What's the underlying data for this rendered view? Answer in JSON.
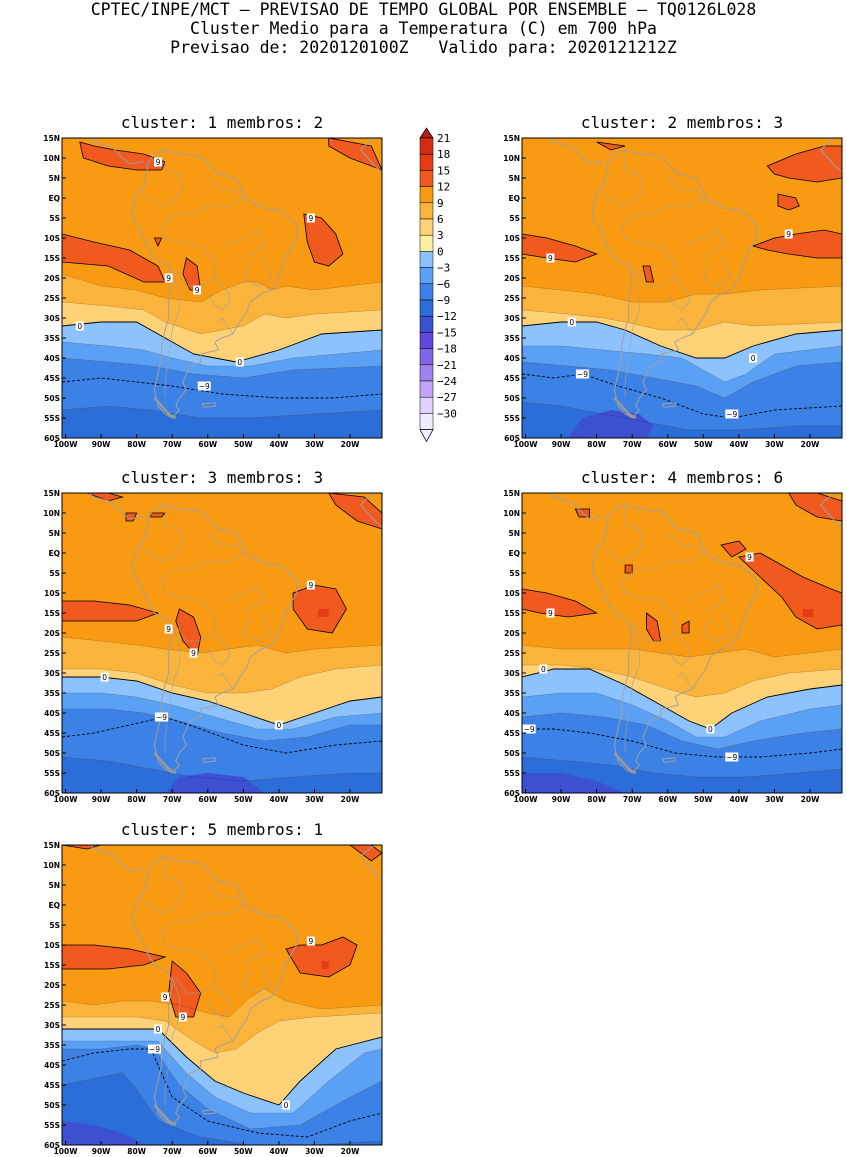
{
  "header": {
    "line1": "CPTEC/INPE/MCT – PREVISAO DE TEMPO GLOBAL POR ENSEMBLE – TQ0126L028",
    "line2": "Cluster Medio para a Temperatura (C) em 700 hPa",
    "line3": "Previsao de: 2020120100Z   Valido para: 2020121212Z"
  },
  "colors": {
    "c18": "#d22d14",
    "c15": "#e63c14",
    "c12": "#f05a1e",
    "c9": "#f89a12",
    "c6": "#fab43c",
    "c3": "#ffd278",
    "c0": "#fff0a0",
    "cm3": "#8cc3ff",
    "cm6": "#5aa0f5",
    "cm9": "#3c82e6",
    "cm12": "#2b6dd9",
    "cm15": "#3c50d2",
    "cm18": "#6446dc",
    "cm21": "#8264e6",
    "cm24": "#a082f0",
    "cm27": "#c3a5fa",
    "cm30": "#e1d2ff",
    "map_line": "#a0a0a0"
  },
  "axes": {
    "lat_labels": [
      "15N",
      "10N",
      "5N",
      "EQ",
      "5S",
      "10S",
      "15S",
      "20S",
      "25S",
      "30S",
      "35S",
      "40S",
      "45S",
      "50S",
      "55S",
      "60S"
    ],
    "lon_labels": [
      "100W",
      "90W",
      "80W",
      "70W",
      "60W",
      "50W",
      "40W",
      "30W",
      "20W"
    ]
  },
  "colorbar": {
    "labels": [
      "21",
      "18",
      "15",
      "12",
      "9",
      "6",
      "3",
      "0",
      "−3",
      "−6",
      "−9",
      "−12",
      "−15",
      "−18",
      "−21",
      "−24",
      "−27",
      "−30"
    ]
  },
  "panels": [
    {
      "title": "cluster: 1   membros: 2",
      "labels": [
        {
          "text": "9",
          "lon": -74,
          "lat": 9
        },
        {
          "text": "9",
          "lon": -31,
          "lat": -5
        },
        {
          "text": "9",
          "lon": -71,
          "lat": -20
        },
        {
          "text": "9",
          "lon": -63,
          "lat": -23
        },
        {
          "text": "0",
          "lon": -96,
          "lat": -32
        },
        {
          "text": "0",
          "lon": -51,
          "lat": -41
        },
        {
          "text": "−9",
          "lon": -61,
          "lat": -47
        }
      ]
    },
    {
      "title": "cluster: 2   membros: 3",
      "labels": [
        {
          "text": "9",
          "lon": -93,
          "lat": -15
        },
        {
          "text": "9",
          "lon": -26,
          "lat": -9
        },
        {
          "text": "0",
          "lon": -87,
          "lat": -31
        },
        {
          "text": "0",
          "lon": -36,
          "lat": -40
        },
        {
          "text": "−9",
          "lon": -84,
          "lat": -44
        },
        {
          "text": "−9",
          "lon": -42,
          "lat": -54
        }
      ]
    },
    {
      "title": "cluster: 3   membros: 3",
      "labels": [
        {
          "text": "9",
          "lon": -31,
          "lat": -8
        },
        {
          "text": "9",
          "lon": -71,
          "lat": -19
        },
        {
          "text": "9",
          "lon": -64,
          "lat": -25
        },
        {
          "text": "0",
          "lon": -89,
          "lat": -31
        },
        {
          "text": "0",
          "lon": -40,
          "lat": -43
        },
        {
          "text": "−9",
          "lon": -73,
          "lat": -41
        }
      ]
    },
    {
      "title": "cluster: 4   membros: 6",
      "labels": [
        {
          "text": "9",
          "lon": -37,
          "lat": -1
        },
        {
          "text": "9",
          "lon": -93,
          "lat": -15
        },
        {
          "text": "0",
          "lon": -95,
          "lat": -29
        },
        {
          "text": "0",
          "lon": -48,
          "lat": -44
        },
        {
          "text": "−9",
          "lon": -99,
          "lat": -44
        },
        {
          "text": "−9",
          "lon": -42,
          "lat": -51
        }
      ]
    },
    {
      "title": "cluster: 5   membros: 1",
      "labels": [
        {
          "text": "9",
          "lon": -31,
          "lat": -9
        },
        {
          "text": "9",
          "lon": -72,
          "lat": -23
        },
        {
          "text": "9",
          "lon": -67,
          "lat": -28
        },
        {
          "text": "0",
          "lon": -74,
          "lat": -31
        },
        {
          "text": "0",
          "lon": -38,
          "lat": -50
        },
        {
          "text": "−9",
          "lon": -75,
          "lat": -36
        }
      ]
    }
  ]
}
